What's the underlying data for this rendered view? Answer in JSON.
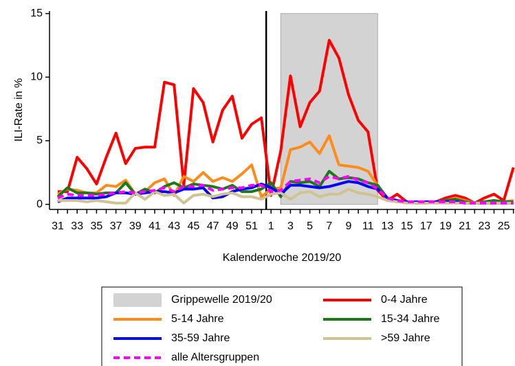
{
  "chart_data": {
    "type": "line",
    "y_label": "ILI-Rate in %",
    "x_label": "Kalenderwoche 2019/20",
    "categories": [
      "31",
      null,
      "33",
      null,
      "35",
      null,
      "37",
      null,
      "39",
      null,
      "41",
      null,
      "43",
      null,
      "45",
      null,
      "47",
      null,
      "49",
      null,
      "51",
      null,
      "1",
      null,
      "3",
      null,
      "5",
      null,
      "7",
      null,
      "9",
      null,
      "11",
      null,
      "13",
      null,
      "15",
      null,
      "17",
      null,
      "19",
      null,
      "21",
      null,
      "23",
      null,
      "25",
      null
    ],
    "ylim": [
      -0.4,
      15.2
    ],
    "yticks": [
      0,
      5,
      10,
      15
    ],
    "vline": 21.5,
    "span": {
      "name": "Grippewelle 2019/20",
      "color": "#d3d3d3",
      "from": 23,
      "to": 33
    },
    "series": [
      {
        "name": "0-4 Jahre",
        "color": "#ff0000",
        "values": [
          1.0,
          1.0,
          3.7,
          2.8,
          1.6,
          3.7,
          5.6,
          3.2,
          4.4,
          4.5,
          4.5,
          9.6,
          9.4,
          1.5,
          9.1,
          8.0,
          4.9,
          7.4,
          8.5,
          5.2,
          6.3,
          6.8,
          0.7,
          4.2,
          10.1,
          6.1,
          8.0,
          8.9,
          12.9,
          11.5,
          8.6,
          6.6,
          5.7,
          1.1,
          0.3,
          0.8,
          0.2,
          0.1,
          0.1,
          0.2,
          0.5,
          0.7,
          0.5,
          0.1,
          0.5,
          0.8,
          0.3,
          2.9
        ]
      },
      {
        "name": "5-14 Jahre",
        "color": "#ff8c1a",
        "values": [
          0.8,
          1.2,
          1.1,
          0.9,
          0.9,
          1.5,
          1.4,
          1.9,
          0.8,
          1.0,
          1.7,
          2.0,
          0.7,
          2.2,
          1.8,
          2.5,
          1.8,
          2.1,
          1.8,
          2.4,
          3.1,
          0.6,
          1.2,
          1.3,
          4.3,
          4.5,
          4.9,
          4.0,
          5.4,
          3.1,
          3.0,
          2.9,
          2.6,
          1.5,
          0.4,
          0.2,
          0.2,
          0.1,
          0.2,
          0.2,
          0.3,
          0.5,
          0.3,
          0.1,
          0.2,
          0.3,
          0.2,
          0.3
        ]
      },
      {
        "name": "15-34 Jahre",
        "color": "#1a7a1a",
        "values": [
          0.6,
          1.3,
          0.9,
          0.9,
          0.8,
          0.9,
          0.9,
          1.7,
          0.8,
          1.2,
          0.9,
          1.4,
          1.7,
          1.3,
          1.6,
          1.5,
          1.4,
          1.2,
          1.5,
          1.0,
          1.0,
          1.2,
          1.7,
          0.6,
          1.8,
          1.7,
          1.8,
          1.4,
          2.6,
          2.0,
          2.1,
          2.0,
          1.7,
          1.5,
          0.5,
          0.3,
          0.2,
          0.1,
          0.2,
          0.2,
          0.3,
          0.4,
          0.2,
          0.1,
          0.2,
          0.3,
          0.2,
          0.2
        ]
      },
      {
        "name": "35-59 Jahre",
        "color": "#0000ff",
        "values": [
          0.2,
          0.5,
          0.5,
          0.5,
          0.5,
          0.6,
          0.9,
          0.9,
          0.8,
          0.9,
          1.0,
          1.0,
          0.9,
          1.2,
          1.2,
          1.3,
          0.5,
          0.6,
          1.0,
          1.2,
          1.3,
          1.6,
          1.3,
          0.8,
          1.5,
          1.5,
          1.4,
          1.3,
          1.4,
          1.6,
          1.8,
          1.7,
          1.4,
          1.2,
          0.5,
          0.3,
          0.2,
          0.2,
          0.2,
          0.2,
          0.2,
          0.2,
          0.1,
          0.1,
          0.1,
          0.1,
          0.1,
          0.1
        ]
      },
      {
        "name": ">59 Jahre",
        "color": "#cfc391",
        "values": [
          0.3,
          0.3,
          0.3,
          0.2,
          0.3,
          0.2,
          0.1,
          0.1,
          0.9,
          0.4,
          1.0,
          0.7,
          0.8,
          0.1,
          0.7,
          0.8,
          0.6,
          0.8,
          0.9,
          0.6,
          0.6,
          0.4,
          0.8,
          0.9,
          0.4,
          0.9,
          1.0,
          0.6,
          0.8,
          0.8,
          1.2,
          0.9,
          0.8,
          0.6,
          0.3,
          0.2,
          0.1,
          0.1,
          0.1,
          0.1,
          0.1,
          0.1,
          0.1,
          0.1,
          0.1,
          0.1,
          0.1,
          0.1
        ]
      },
      {
        "name": "alle Altersgruppen",
        "color": "#ff00ff",
        "dashed": true,
        "values": [
          0.5,
          0.8,
          0.7,
          0.7,
          0.7,
          0.8,
          0.9,
          1.0,
          0.9,
          1.0,
          1.1,
          1.3,
          1.0,
          1.4,
          1.4,
          1.5,
          1.1,
          1.2,
          1.3,
          1.3,
          1.5,
          1.5,
          1.0,
          1.1,
          1.8,
          1.9,
          2.0,
          1.7,
          2.2,
          2.0,
          2.2,
          1.9,
          1.7,
          1.2,
          0.5,
          0.3,
          0.2,
          0.2,
          0.2,
          0.2,
          0.2,
          0.2,
          0.1,
          0.1,
          0.1,
          0.1,
          0.1,
          0.1
        ]
      }
    ]
  }
}
